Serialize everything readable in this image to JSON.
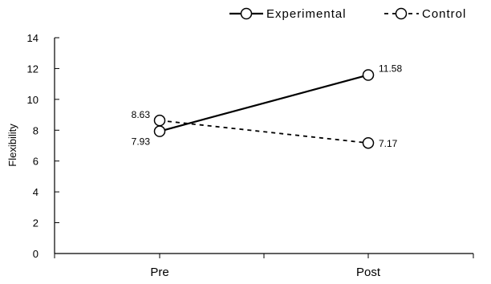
{
  "chart_data": {
    "type": "line",
    "title": "",
    "xlabel": "",
    "ylabel": "Flexibility",
    "ylim": [
      0,
      14
    ],
    "yticks": [
      0,
      2,
      4,
      6,
      8,
      10,
      12,
      14
    ],
    "categories": [
      "Pre",
      "Post"
    ],
    "grid": false,
    "legend_position": "top-right",
    "series": [
      {
        "name": "Experimental",
        "values": [
          7.93,
          11.58
        ],
        "labels": [
          "7.93",
          "11.58"
        ],
        "line_style": "solid",
        "marker": "open-circle",
        "color": "#000000"
      },
      {
        "name": "Control",
        "values": [
          8.63,
          7.17
        ],
        "labels": [
          "8.63",
          "7.17"
        ],
        "line_style": "dashed",
        "marker": "open-circle",
        "color": "#000000"
      }
    ]
  }
}
